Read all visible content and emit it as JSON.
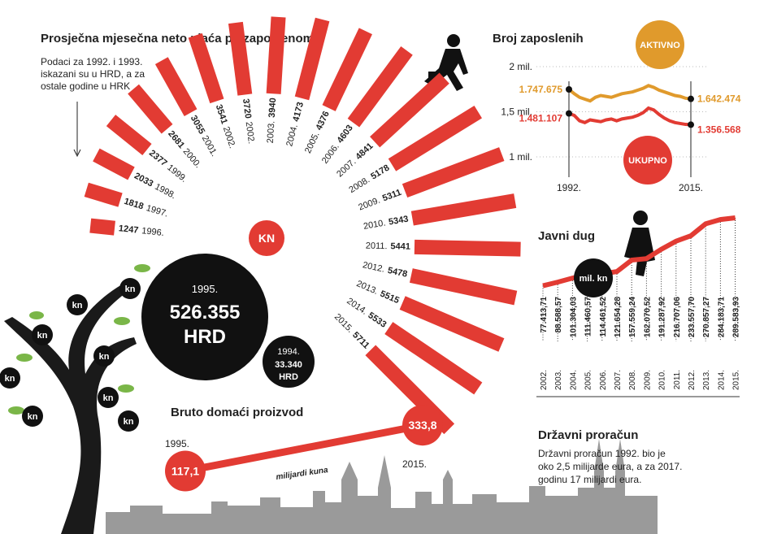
{
  "salary": {
    "title": "Prosječna mjesečna neto plaća po zaposlenome",
    "note": [
      "Podaci za 1992. i 1993.",
      "iskazani su u HRD, a za",
      "ostale godine u HRK"
    ],
    "unit": "KN",
    "categories": [
      "1996.",
      "1997.",
      "1998.",
      "1999.",
      "2000.",
      "2001.",
      "2002.",
      "2002.",
      "2003.",
      "2004.",
      "2005.",
      "2006.",
      "2007.",
      "2008.",
      "2009.",
      "2010.",
      "2011.",
      "2012.",
      "2013.",
      "2014.",
      "2015."
    ],
    "values": [
      1247,
      1818,
      2033,
      2377,
      2681,
      3055,
      3541,
      3720,
      3940,
      4173,
      4376,
      4603,
      4841,
      5178,
      5311,
      5343,
      5441,
      5478,
      5515,
      5533,
      5711
    ],
    "callout_big": {
      "year": "1995.",
      "value": "526.355",
      "unit": "HRD"
    },
    "callout_small": {
      "year": "1994.",
      "value": "33.340",
      "unit": "HRD"
    }
  },
  "employment": {
    "title": "Broj zaposlenih",
    "ylim": [
      1000000,
      2000000
    ],
    "yticks": [
      {
        "value": 2000000,
        "label": "2 mil."
      },
      {
        "value": 1500000,
        "label": "1,5 mil."
      },
      {
        "value": 1000000,
        "label": "1 mil."
      }
    ],
    "categories": [
      "1992.",
      null,
      null,
      null,
      null,
      null,
      null,
      null,
      null,
      null,
      null,
      null,
      null,
      null,
      null,
      null,
      null,
      null,
      null,
      null,
      null,
      null,
      null,
      "2015."
    ],
    "series": [
      {
        "name": "AKTIVNO",
        "color": "#e09a2c",
        "values": [
          1747675,
          1700000,
          1660000,
          1640000,
          1620000,
          1660000,
          1680000,
          1670000,
          1660000,
          1680000,
          1700000,
          1710000,
          1720000,
          1740000,
          1760000,
          1790000,
          1770000,
          1740000,
          1720000,
          1700000,
          1680000,
          1670000,
          1650000,
          1642474
        ],
        "value_labels": [
          "1.747.675",
          null,
          null,
          null,
          null,
          null,
          null,
          null,
          null,
          null,
          null,
          null,
          null,
          null,
          null,
          null,
          null,
          null,
          null,
          null,
          null,
          null,
          null,
          "1.642.474"
        ]
      },
      {
        "name": "UKUPNO",
        "color": "#e23b33",
        "values": [
          1481107,
          1460000,
          1400000,
          1380000,
          1410000,
          1400000,
          1390000,
          1410000,
          1420000,
          1400000,
          1420000,
          1430000,
          1440000,
          1460000,
          1490000,
          1540000,
          1520000,
          1470000,
          1430000,
          1400000,
          1380000,
          1370000,
          1360000,
          1356568
        ],
        "value_labels": [
          "1.481.107",
          null,
          null,
          null,
          null,
          null,
          null,
          null,
          null,
          null,
          null,
          null,
          null,
          null,
          null,
          null,
          null,
          null,
          null,
          null,
          null,
          null,
          null,
          "1.356.568"
        ]
      }
    ]
  },
  "debt": {
    "title": "Javni dug",
    "unit": "mil. kn",
    "categories": [
      "2002.",
      "2003.",
      "2004.",
      "2005.",
      "2006.",
      "2007.",
      "2008.",
      "2009.",
      "2010.",
      "2011.",
      "2012.",
      "2013.",
      "2014.",
      "2015."
    ],
    "values": [
      77413.71,
      88588.57,
      101304.03,
      111460.57,
      114461.52,
      121654.28,
      157559.24,
      162070.52,
      191287.92,
      216707.06,
      233557.7,
      270857.27,
      284183.71,
      289583.93
    ],
    "value_labels": [
      "77.413,71",
      "88.588,57",
      "101.304,03",
      "111.460,57",
      "114.461,52",
      "121.654,28",
      "157.559,24",
      "162.070,52",
      "191.287,92",
      "216.707,06",
      "233.557,70",
      "270.857,27",
      "284.183,71",
      "289.583,93"
    ]
  },
  "gdp": {
    "title": "Bruto domaći proizvod",
    "unit": "milijardi kuna",
    "categories": [
      "1995.",
      "2015."
    ],
    "values": [
      117.1,
      333.8
    ],
    "value_labels": [
      "117,1",
      "333,8"
    ]
  },
  "budget": {
    "title": "Državni proračun",
    "text": [
      "Državni proračun 1992. bio je",
      "oko 2,5 milijarde eura, a za 2017.",
      "godinu 17 milijardi eura."
    ]
  },
  "tree": {
    "labels": [
      "kn",
      "kn",
      "kn",
      "kn",
      "kn",
      "kn",
      "kn",
      "kn"
    ]
  }
}
